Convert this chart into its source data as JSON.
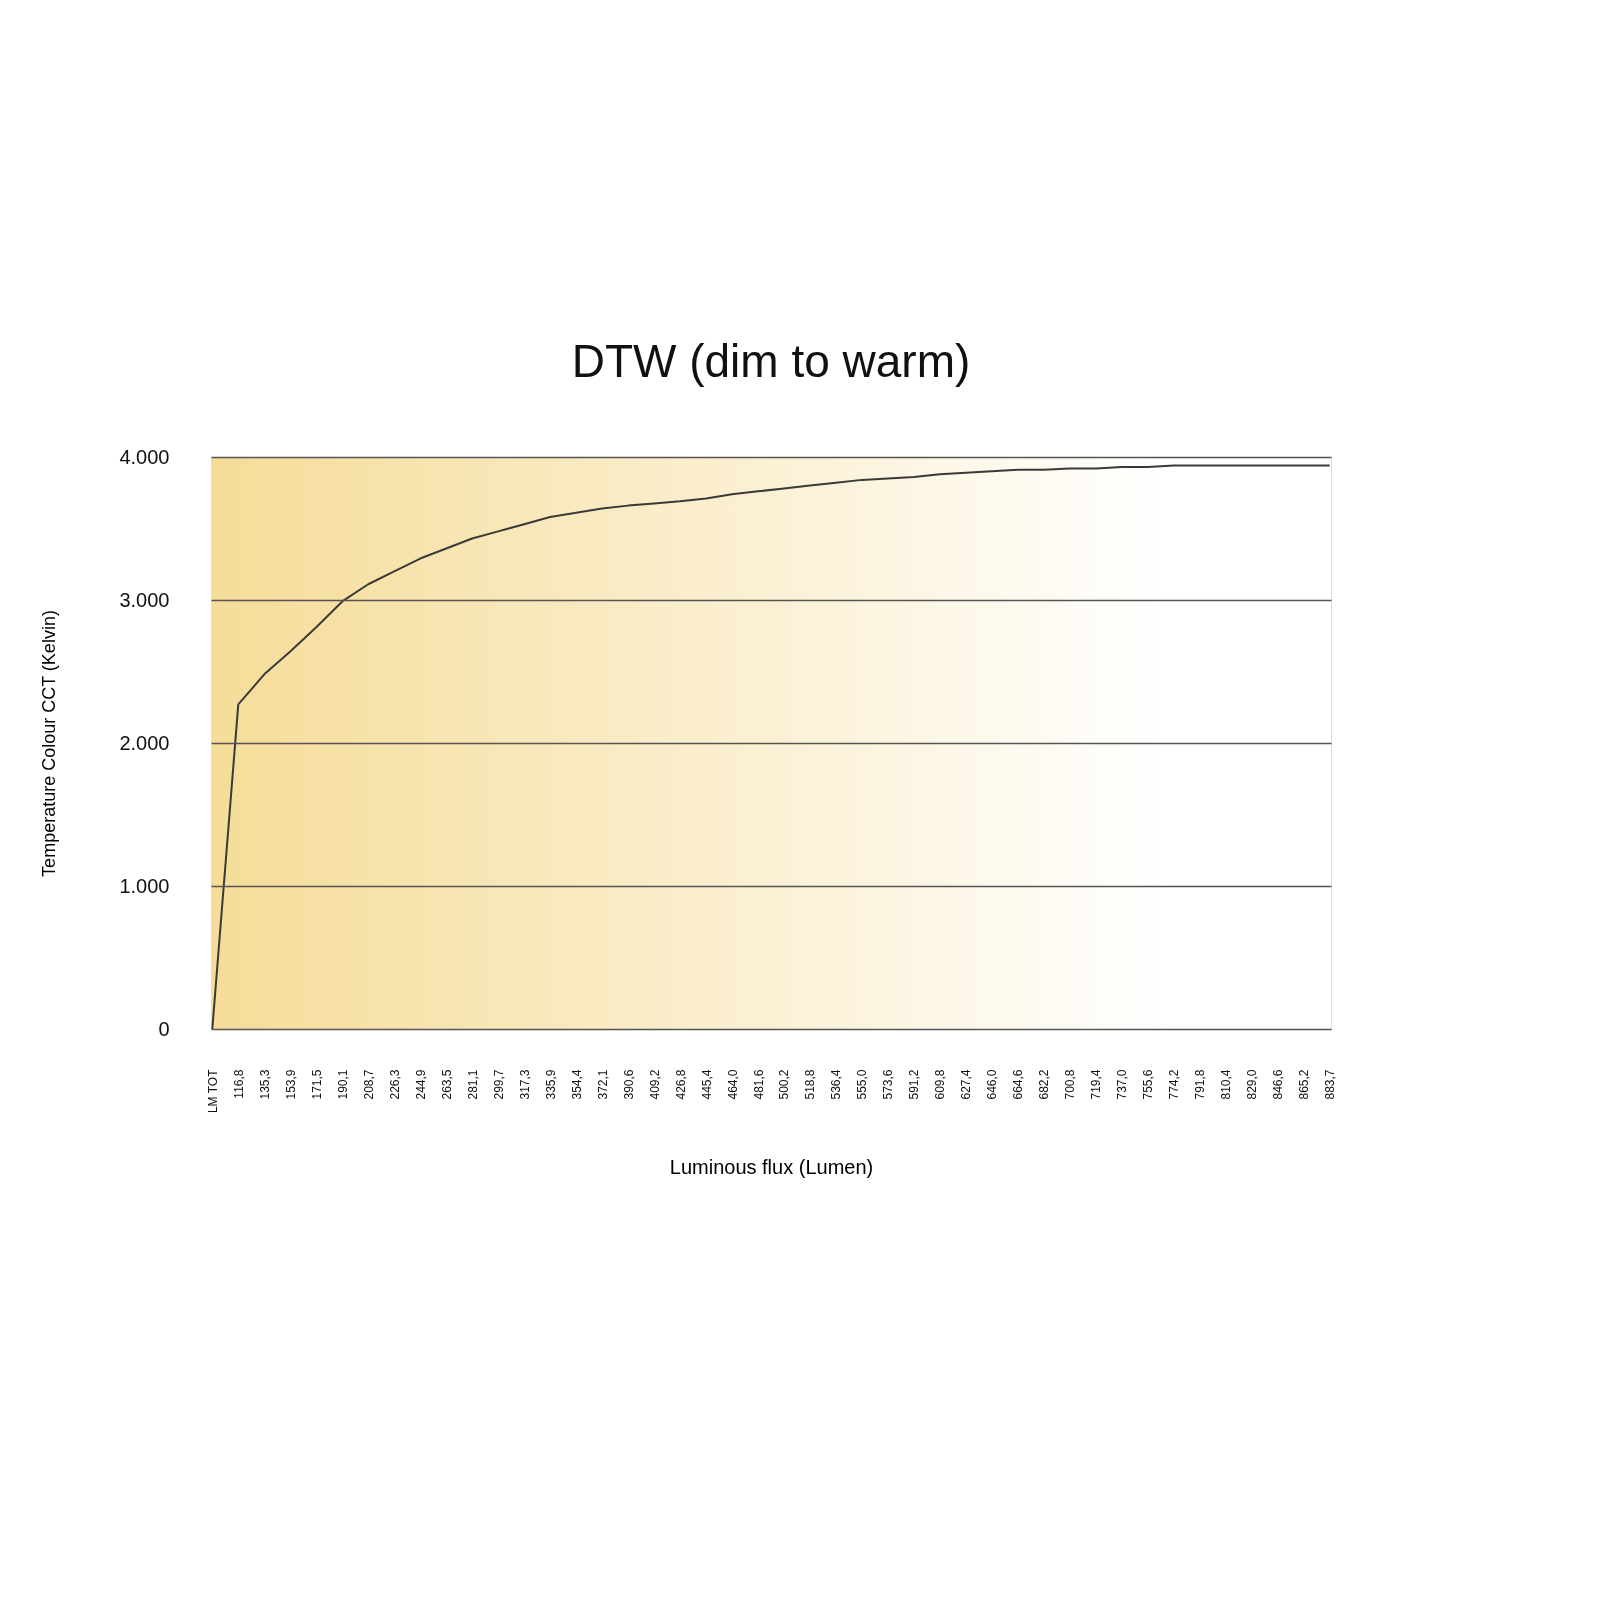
{
  "chart_data": {
    "type": "line",
    "title": "DTW (dim to warm)",
    "xlabel": "Luminous flux (Lumen)",
    "ylabel": "Temperature Colour CCT (Kelvin)",
    "categories": [
      "LM TOT",
      "116,8",
      "135,3",
      "153,9",
      "171,5",
      "190,1",
      "208,7",
      "226,3",
      "244,9",
      "263,5",
      "281,1",
      "299,7",
      "317,3",
      "335,9",
      "354,4",
      "372,1",
      "390,6",
      "409,2",
      "426,8",
      "445,4",
      "464,0",
      "481,6",
      "500,2",
      "518,8",
      "536,4",
      "555,0",
      "573,6",
      "591,2",
      "609,8",
      "627,4",
      "646,0",
      "664,6",
      "682,2",
      "700,8",
      "719,4",
      "737,0",
      "755,6",
      "774,2",
      "791,8",
      "810,4",
      "829,0",
      "846,6",
      "865,2",
      "883,7"
    ],
    "series": [
      {
        "color": "#3a3a3a",
        "values": [
          0,
          2270,
          2480,
          2640,
          2810,
          2990,
          3110,
          3200,
          3290,
          3360,
          3430,
          3480,
          3530,
          3580,
          3610,
          3640,
          3660,
          3675,
          3690,
          3710,
          3740,
          3760,
          3780,
          3800,
          3820,
          3840,
          3850,
          3860,
          3880,
          3890,
          3900,
          3910,
          3910,
          3920,
          3920,
          3930,
          3930,
          3940,
          3940,
          3940,
          3940,
          3940,
          3940,
          3940
        ]
      }
    ],
    "ylim": [
      0,
      4000
    ],
    "yticks": [
      0,
      {
        "value": 1000,
        "label": "1.000"
      },
      {
        "value": 2000,
        "label": "2.000"
      },
      {
        "value": 3000,
        "label": "3.000"
      },
      {
        "value": 4000,
        "label": "4.000"
      }
    ],
    "grid": "y",
    "marker": "none",
    "line_style": "solid",
    "bands": [
      {
        "axis": "y",
        "from": 0,
        "to": 4000,
        "color": "#f5dc98"
      }
    ]
  }
}
